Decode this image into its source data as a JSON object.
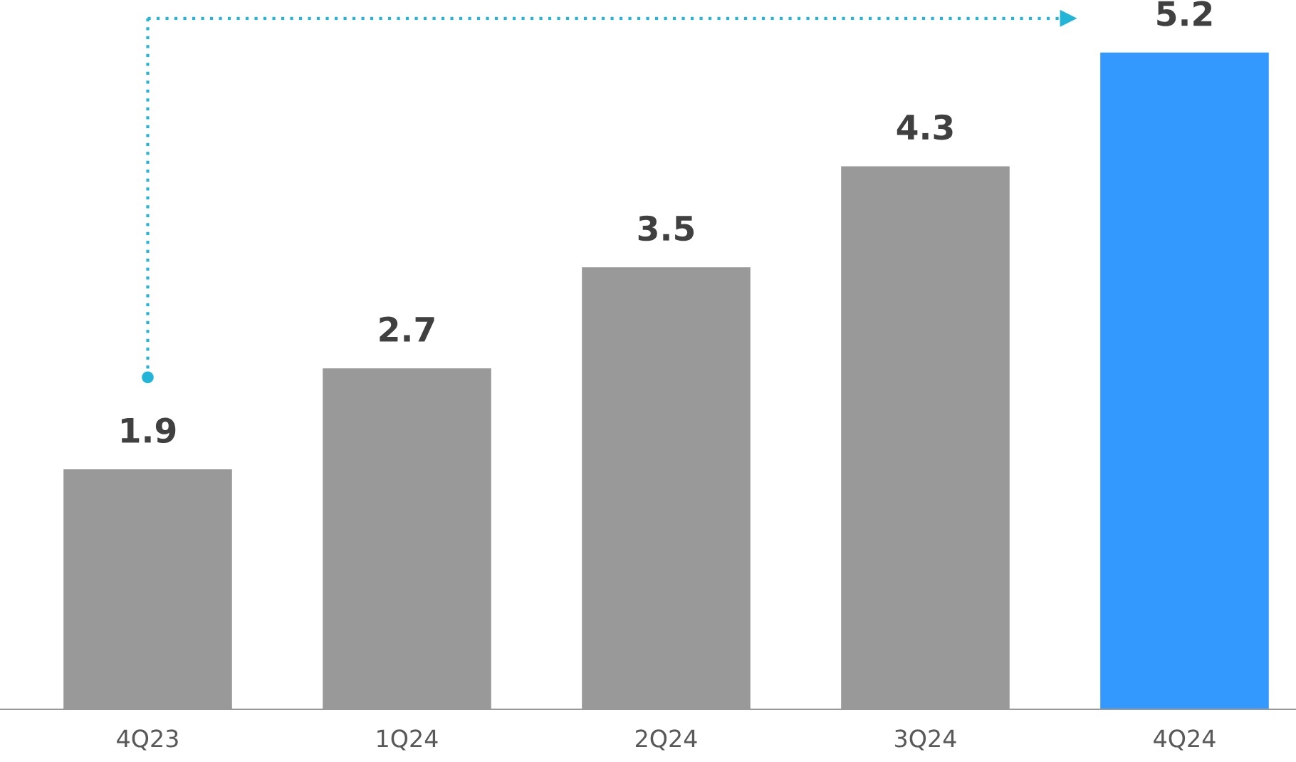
{
  "chart_data": {
    "type": "bar",
    "categories": [
      "4Q23",
      "1Q24",
      "2Q24",
      "3Q24",
      "4Q24"
    ],
    "values": [
      1.9,
      2.7,
      3.5,
      4.3,
      5.2
    ],
    "colors": [
      "#999999",
      "#999999",
      "#999999",
      "#999999",
      "#3399ff"
    ],
    "data_labels": true,
    "grid": false,
    "legend": false
  }
}
